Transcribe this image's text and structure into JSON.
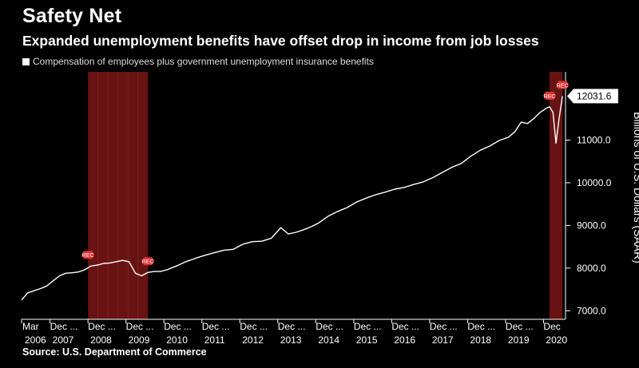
{
  "title": "Safety Net",
  "subtitle": "Expanded unemployment benefits have offset drop in income from job losses",
  "legend": "Compensation of employees plus government unemployment insurance benefits",
  "source": "Source: U.S. Department of Commerce",
  "chart_data": {
    "type": "line",
    "series_name": "Compensation of employees plus government unemployment insurance benefits",
    "ylabel": "Billions of U.S. Dollars (SAAR)",
    "ylim": [
      6800,
      12600
    ],
    "xlim": [
      2006.17,
      2020.5
    ],
    "yticks": [
      7000,
      8000,
      9000,
      10000,
      11000
    ],
    "ytick_labels": [
      "7000.0",
      "8000.0",
      "9000.0",
      "10000.0",
      "11000.0"
    ],
    "last_value": 12031.6,
    "last_value_label": "12031.6",
    "x": [
      2006.17,
      2006.33,
      2006.5,
      2006.67,
      2006.83,
      2007.0,
      2007.17,
      2007.33,
      2007.5,
      2007.67,
      2007.83,
      2008.0,
      2008.17,
      2008.33,
      2008.5,
      2008.67,
      2008.83,
      2009.0,
      2009.17,
      2009.33,
      2009.5,
      2009.67,
      2009.83,
      2010.0,
      2010.25,
      2010.5,
      2010.75,
      2011.0,
      2011.25,
      2011.5,
      2011.75,
      2012.0,
      2012.25,
      2012.5,
      2012.75,
      2013.0,
      2013.2,
      2013.4,
      2013.6,
      2013.8,
      2014.0,
      2014.25,
      2014.5,
      2014.75,
      2015.0,
      2015.25,
      2015.5,
      2015.75,
      2016.0,
      2016.25,
      2016.5,
      2016.75,
      2017.0,
      2017.25,
      2017.5,
      2017.75,
      2018.0,
      2018.25,
      2018.5,
      2018.75,
      2019.0,
      2019.17,
      2019.33,
      2019.5,
      2019.67,
      2019.83,
      2020.0,
      2020.08,
      2020.17,
      2020.25,
      2020.33,
      2020.42
    ],
    "values": [
      7250,
      7420,
      7470,
      7520,
      7580,
      7700,
      7820,
      7880,
      7890,
      7910,
      7960,
      8050,
      8070,
      8110,
      8120,
      8150,
      8180,
      8150,
      7880,
      7820,
      7900,
      7920,
      7920,
      7960,
      8050,
      8150,
      8230,
      8300,
      8360,
      8420,
      8440,
      8560,
      8620,
      8630,
      8700,
      8950,
      8800,
      8840,
      8900,
      8970,
      9060,
      9220,
      9330,
      9420,
      9550,
      9640,
      9720,
      9780,
      9850,
      9890,
      9960,
      10020,
      10120,
      10240,
      10360,
      10450,
      10620,
      10760,
      10860,
      10990,
      11070,
      11200,
      11420,
      11390,
      11510,
      11650,
      11750,
      11780,
      11650,
      10930,
      11500,
      12031.6
    ],
    "recessions": [
      {
        "start": 2007.92,
        "end": 2009.5,
        "label": "REC"
      },
      {
        "start": 2020.08,
        "end": 2020.42,
        "label": "REC"
      }
    ],
    "x_ticks": [
      {
        "x": 2006.17,
        "month": "Mar",
        "year": "2006"
      },
      {
        "x": 2006.92,
        "month": "Dec ...",
        "year": "2007"
      },
      {
        "x": 2007.92,
        "month": "Dec ...",
        "year": "2008"
      },
      {
        "x": 2008.92,
        "month": "Dec ...",
        "year": "2009"
      },
      {
        "x": 2009.92,
        "month": "Dec ...",
        "year": "2010"
      },
      {
        "x": 2010.92,
        "month": "Dec ...",
        "year": "2011"
      },
      {
        "x": 2011.92,
        "month": "Dec ...",
        "year": "2012"
      },
      {
        "x": 2012.92,
        "month": "Dec ...",
        "year": "2013"
      },
      {
        "x": 2013.92,
        "month": "Dec ...",
        "year": "2014"
      },
      {
        "x": 2014.92,
        "month": "Dec ...",
        "year": "2015"
      },
      {
        "x": 2015.92,
        "month": "Dec ...",
        "year": "2016"
      },
      {
        "x": 2016.92,
        "month": "Dec ...",
        "year": "2017"
      },
      {
        "x": 2017.92,
        "month": "Dec ...",
        "year": "2018"
      },
      {
        "x": 2018.92,
        "month": "Dec ...",
        "year": "2019"
      },
      {
        "x": 2019.92,
        "month": "Dec",
        "year": "2020"
      }
    ],
    "colors": {
      "line": "#ffffff",
      "recession": "#8b1a1a",
      "marker": "#e03030"
    }
  }
}
